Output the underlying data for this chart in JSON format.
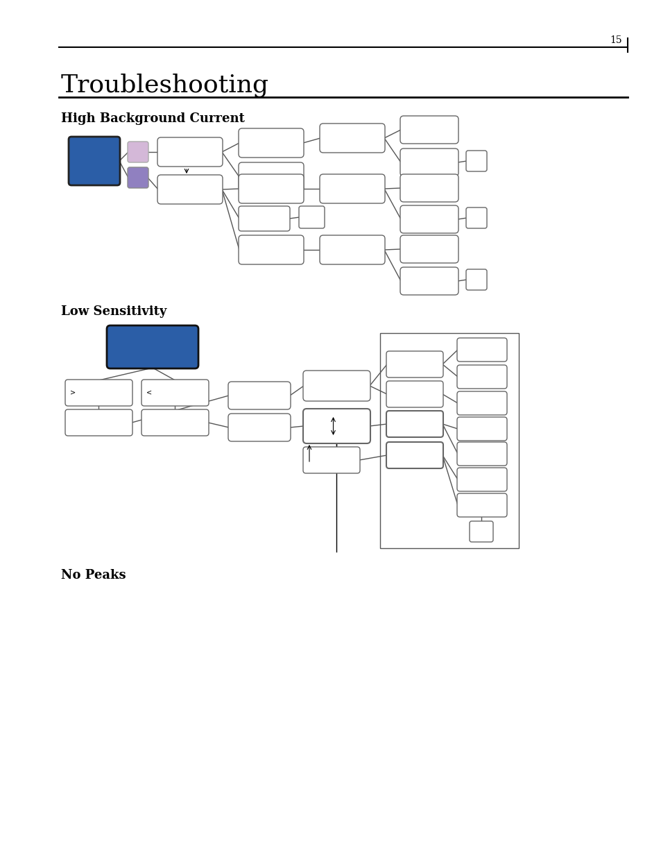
{
  "page_number": "15",
  "title": "Troubleshooting",
  "section1": "High Background Current",
  "section2": "Low Sensitivity",
  "section3": "No Peaks",
  "bg_color": "#ffffff",
  "blue_color": "#2b5ea7",
  "lavender_color": "#d4b8d8",
  "purple_color": "#9080c0",
  "box_edge_color": "#666666",
  "title_fontsize": 26,
  "section_fontsize": 13,
  "page_num_fontsize": 10
}
